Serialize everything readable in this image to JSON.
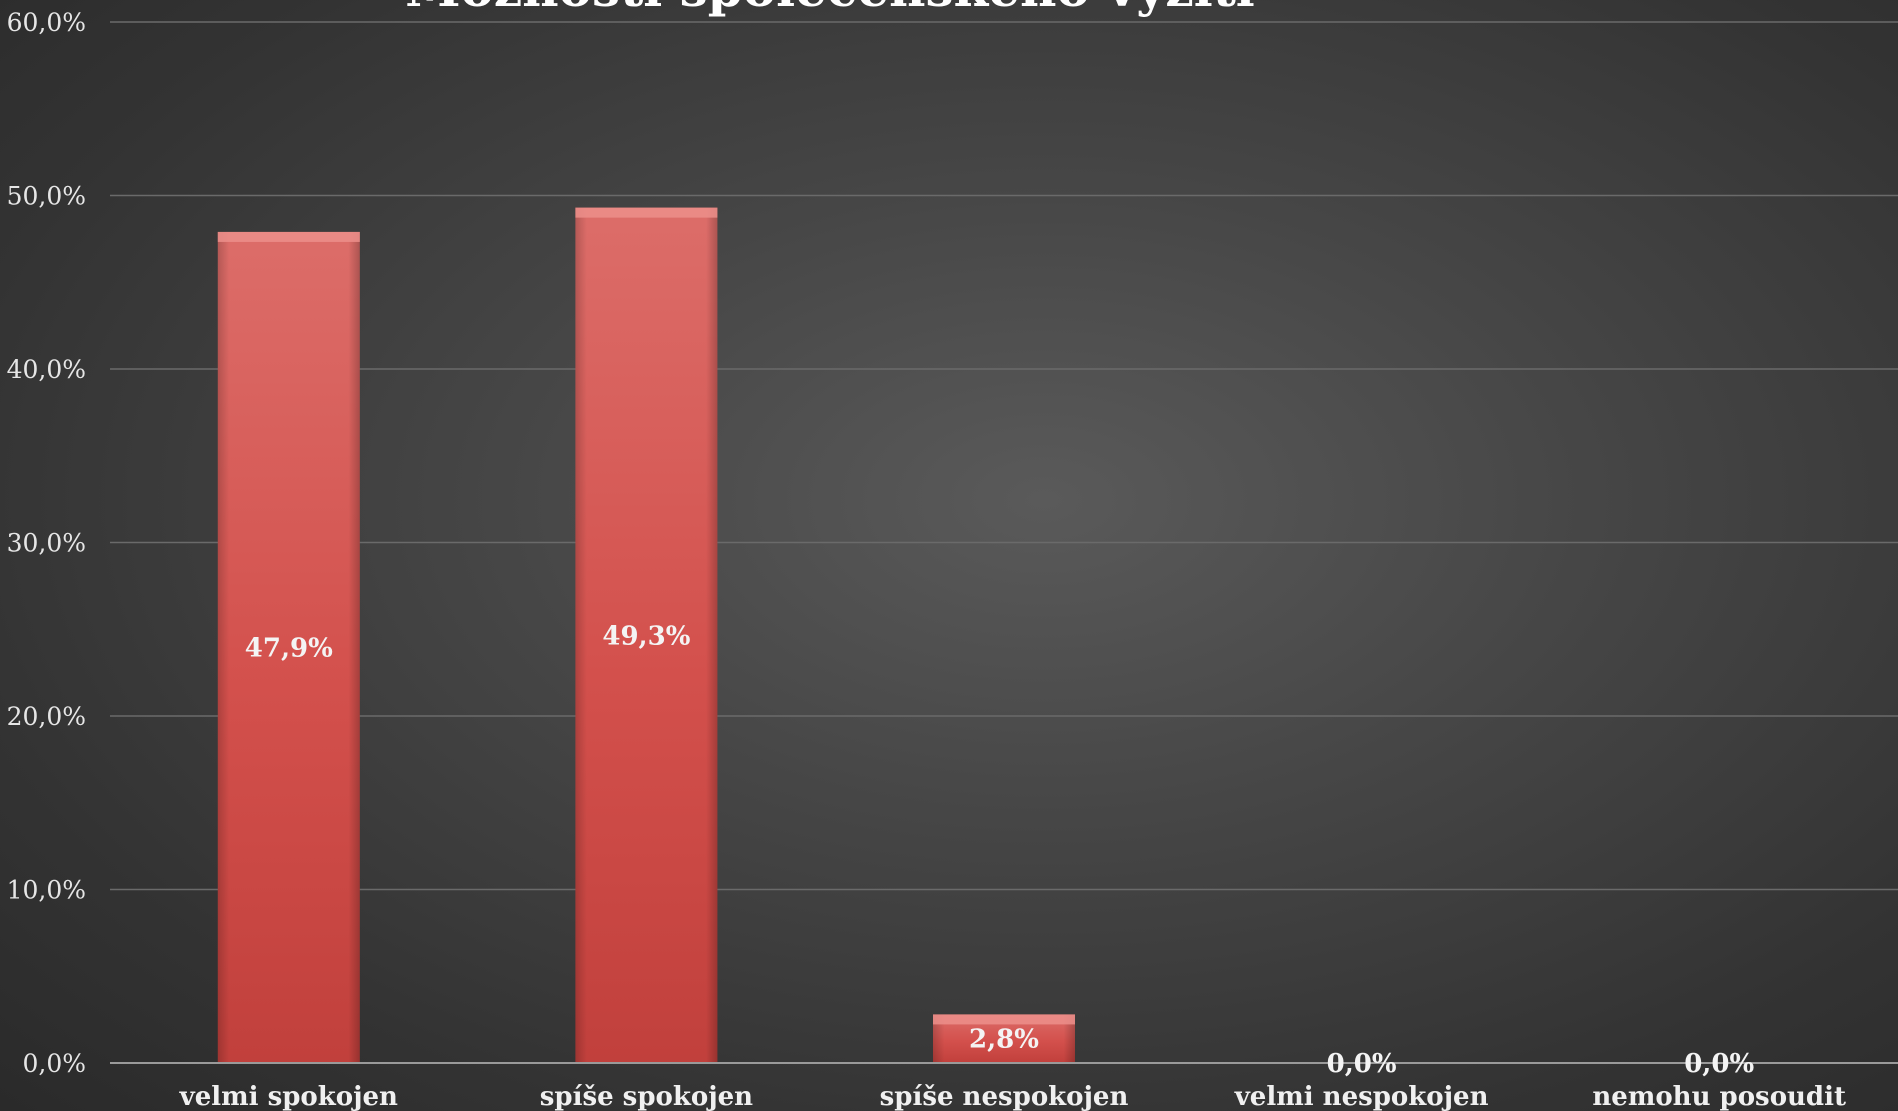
{
  "chart_data": {
    "type": "bar",
    "title": "Možnosti společenského vyžití",
    "categories": [
      "velmi spokojen",
      "spíše spokojen",
      "spíše nespokojen",
      "velmi nespokojen",
      "nemohu posoudit"
    ],
    "values": [
      47.9,
      49.3,
      2.8,
      0.0,
      0.0
    ],
    "value_labels": [
      "47,9%",
      "49,3%",
      "2,8%",
      "0,0%",
      "0,0%"
    ],
    "y_ticks": [
      "0,0%",
      "10,0%",
      "20,0%",
      "30,0%",
      "40,0%",
      "50,0%",
      "60,0%"
    ],
    "ylim": [
      0,
      60
    ],
    "grid": true,
    "colors": {
      "bar": "#d0504c",
      "bar_light": "#e07470",
      "bar_dark": "#b83c38",
      "grid": "#6a6a6a",
      "axis": "#9a9a9a"
    }
  }
}
